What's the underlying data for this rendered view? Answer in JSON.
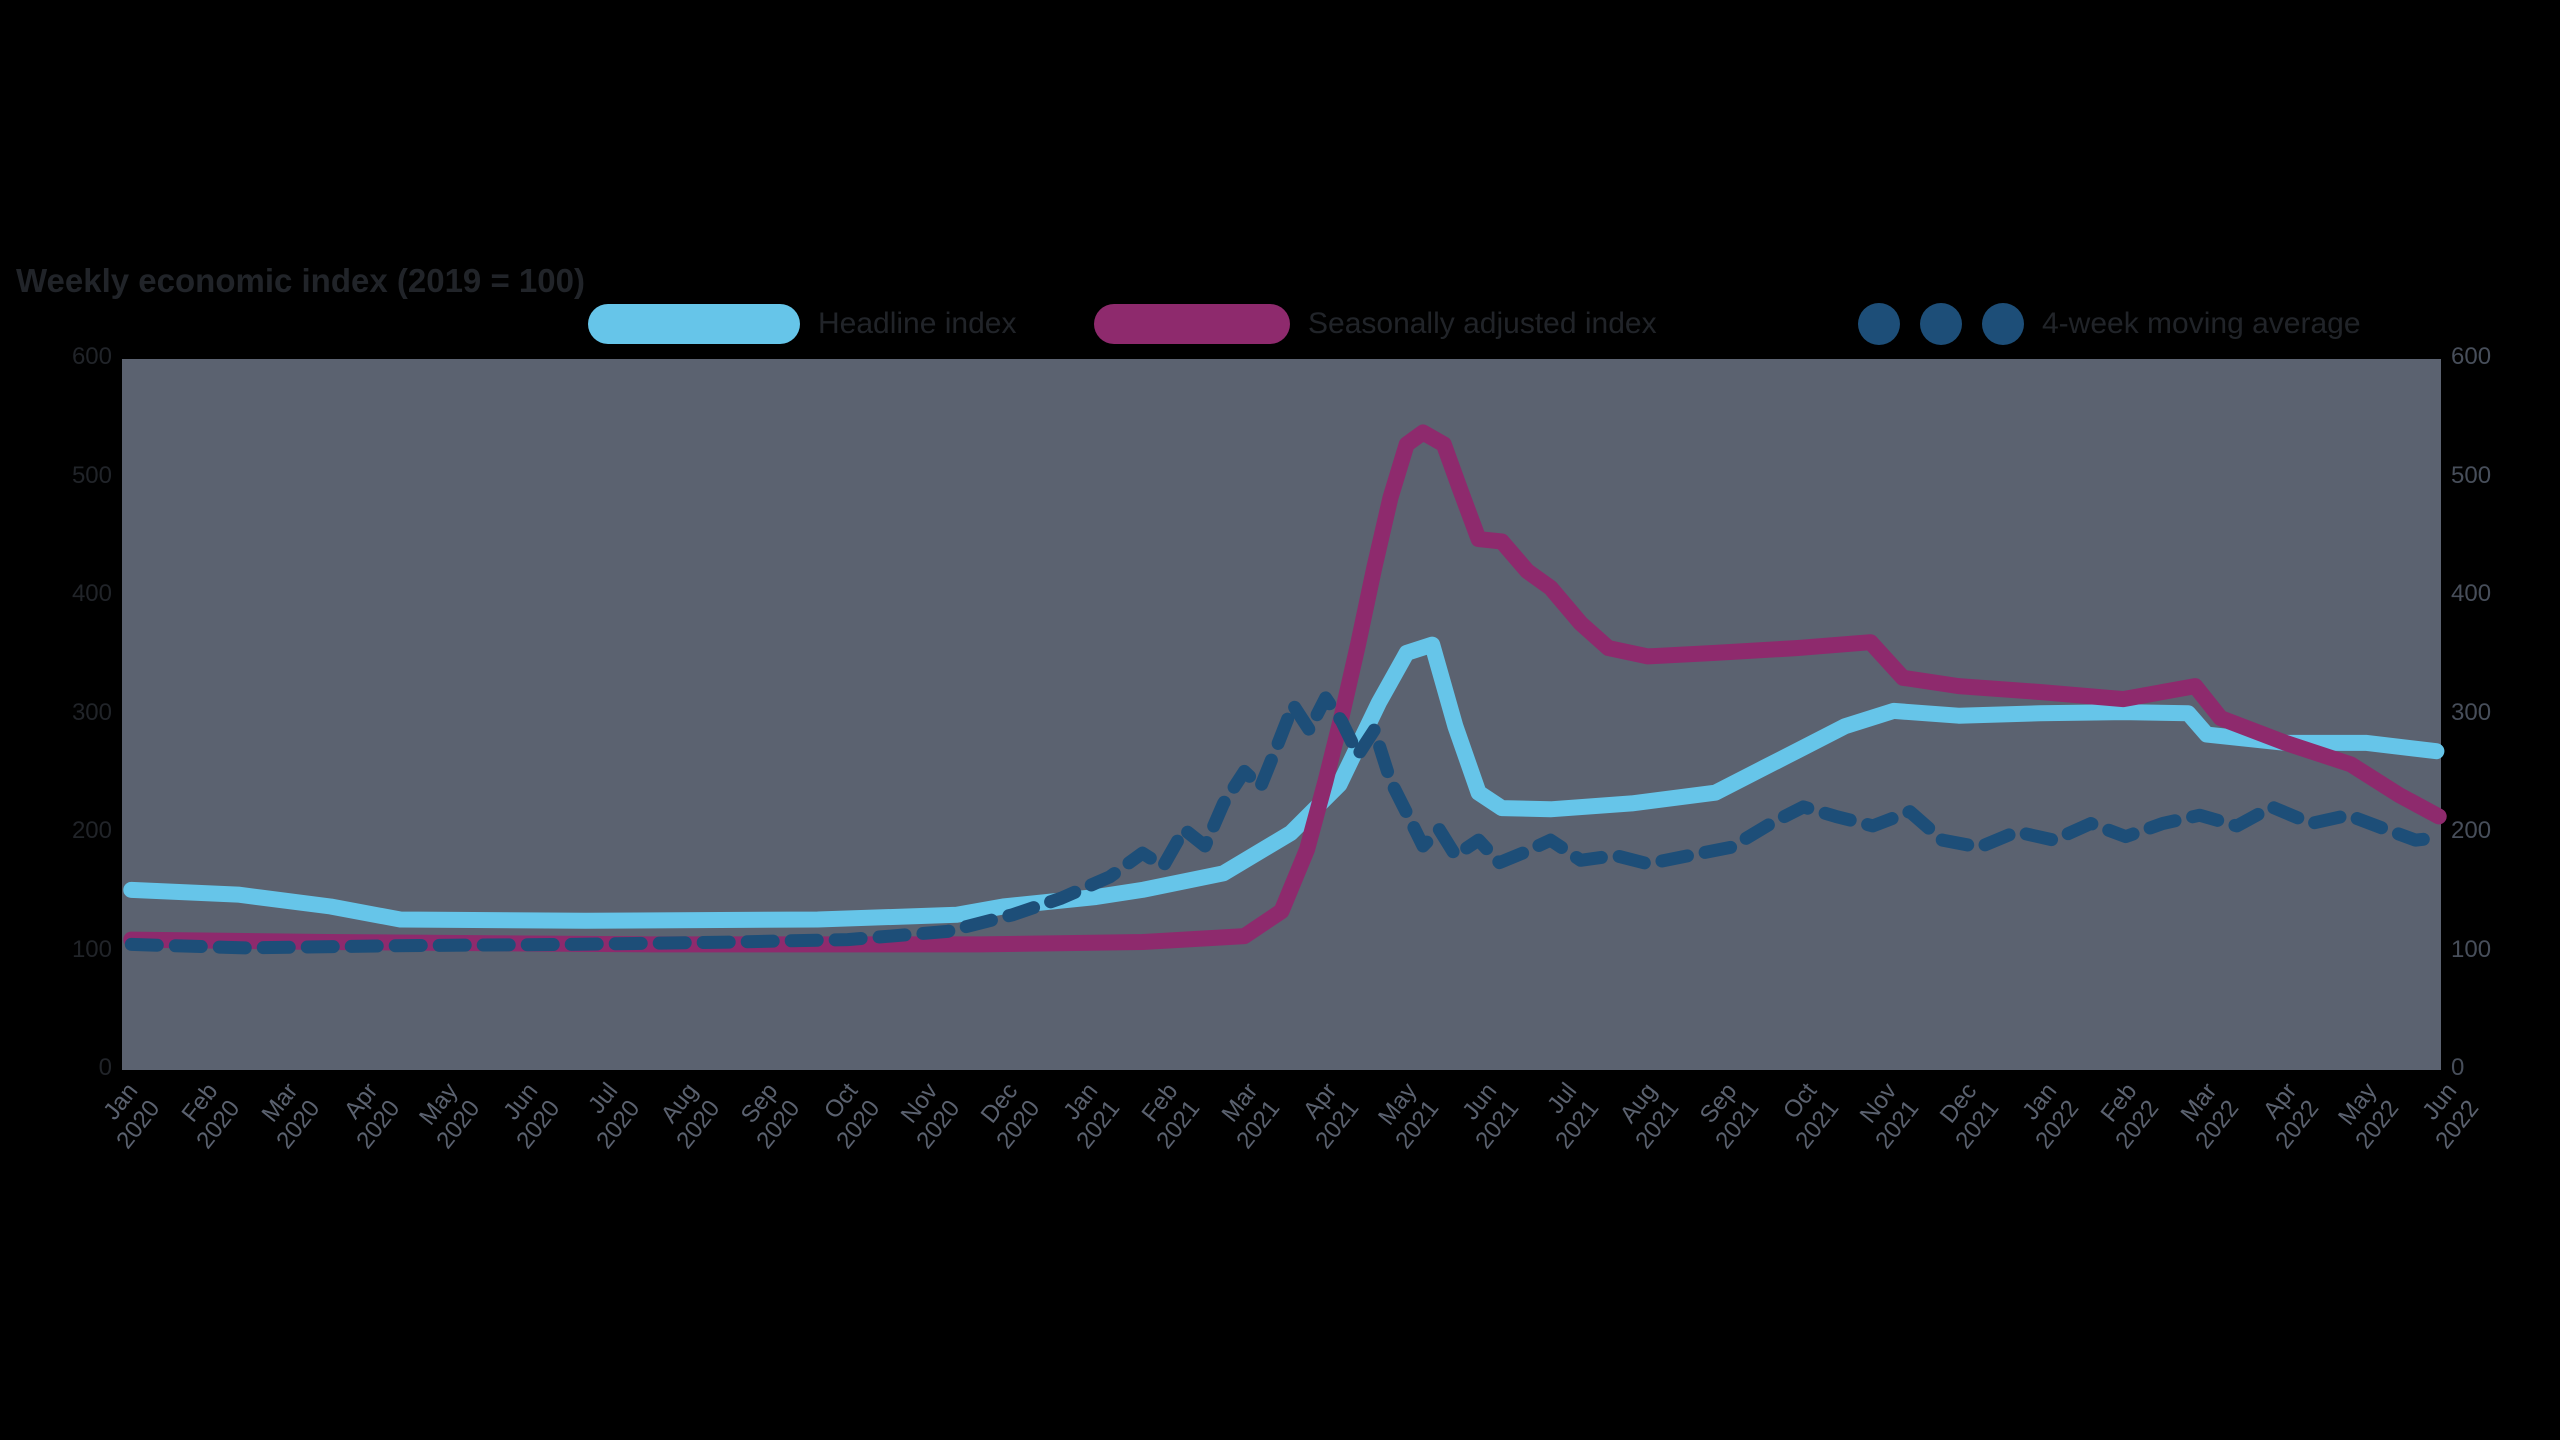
{
  "page": {
    "background_color": "#000000",
    "panel_color": "#5b6270",
    "text_color": "#212429"
  },
  "chart_data": {
    "type": "line",
    "title": "Weekly economic index (2019 = 100)",
    "xlabel": "",
    "ylabel": "",
    "ylim": [
      0,
      600
    ],
    "grid": false,
    "legend_position": "top",
    "y_ticks": [
      0,
      100,
      200,
      300,
      400,
      500,
      600
    ],
    "x_ticks": [
      "Jan\n2020",
      "Feb\n2020",
      "Mar\n2020",
      "Apr\n2020",
      "May\n2020",
      "Jun\n2020",
      "Jul\n2020",
      "Aug\n2020",
      "Sep\n2020",
      "Oct\n2020",
      "Nov\n2020",
      "Dec\n2020",
      "Jan\n2021",
      "Feb\n2021",
      "Mar\n2021",
      "Apr\n2021",
      "May\n2021",
      "Jun\n2021",
      "Jul\n2021",
      "Aug\n2021",
      "Sep\n2021",
      "Oct\n2021",
      "Nov\n2021",
      "Dec\n2021",
      "Jan\n2022",
      "Feb\n2022",
      "Mar\n2022",
      "Apr\n2022",
      "May\n2022",
      "Jun\n2022"
    ],
    "series": [
      {
        "name": "Headline index",
        "color": "#66c5e9",
        "line_style": "solid",
        "stroke_width": 16,
        "dash": null,
        "points": [
          [
            0.4,
            152
          ],
          [
            5,
            148
          ],
          [
            9,
            138
          ],
          [
            12,
            127
          ],
          [
            20,
            126
          ],
          [
            30,
            127
          ],
          [
            36,
            131
          ],
          [
            38,
            138
          ],
          [
            42,
            146
          ],
          [
            44,
            152
          ],
          [
            47.5,
            166
          ],
          [
            50.4,
            200
          ],
          [
            52.5,
            241
          ],
          [
            54.2,
            310
          ],
          [
            55.4,
            352
          ],
          [
            56.5,
            359
          ],
          [
            57.5,
            290
          ],
          [
            58.5,
            234
          ],
          [
            59.5,
            221
          ],
          [
            61.6,
            220
          ],
          [
            65.1,
            225
          ],
          [
            68.7,
            234
          ],
          [
            70.8,
            255
          ],
          [
            72.2,
            269
          ],
          [
            74.3,
            290
          ],
          [
            76.4,
            303
          ],
          [
            79.2,
            299
          ],
          [
            82.7,
            301
          ],
          [
            86.3,
            302
          ],
          [
            89.1,
            301
          ],
          [
            89.9,
            283
          ],
          [
            93.3,
            276
          ],
          [
            96.8,
            276
          ],
          [
            99.8,
            269
          ]
        ]
      },
      {
        "name": "Seasonally adjusted index",
        "color": "#8e2a6d",
        "line_style": "solid",
        "stroke_width": 16,
        "dash": null,
        "points": [
          [
            0.4,
            110
          ],
          [
            8.8,
            108
          ],
          [
            22.9,
            106
          ],
          [
            37,
            106
          ],
          [
            44,
            108
          ],
          [
            48.4,
            113
          ],
          [
            50,
            134
          ],
          [
            51.1,
            186
          ],
          [
            51.9,
            244
          ],
          [
            52.6,
            299
          ],
          [
            53.3,
            359
          ],
          [
            54,
            424
          ],
          [
            54.7,
            483
          ],
          [
            55.4,
            528
          ],
          [
            56.1,
            538
          ],
          [
            57,
            528
          ],
          [
            57.7,
            490
          ],
          [
            58.5,
            448
          ],
          [
            59.5,
            446
          ],
          [
            60.6,
            421
          ],
          [
            61.6,
            407
          ],
          [
            62.9,
            377
          ],
          [
            64.1,
            356
          ],
          [
            65.8,
            349
          ],
          [
            68.7,
            352
          ],
          [
            72.2,
            356
          ],
          [
            75.4,
            361
          ],
          [
            76.8,
            331
          ],
          [
            79.2,
            324
          ],
          [
            82.7,
            319
          ],
          [
            86.3,
            313
          ],
          [
            89.4,
            324
          ],
          [
            90.5,
            297
          ],
          [
            93.3,
            276
          ],
          [
            96.1,
            258
          ],
          [
            98.2,
            232
          ],
          [
            99.9,
            214
          ]
        ]
      },
      {
        "name": "4-week moving average",
        "color": "#1d4e78",
        "line_style": "dotted",
        "stroke_width": 13,
        "dash": "26 18",
        "points": [
          [
            0.4,
            106
          ],
          [
            5.3,
            103
          ],
          [
            12.3,
            105
          ],
          [
            19.4,
            106
          ],
          [
            26.4,
            108
          ],
          [
            31.3,
            110
          ],
          [
            35.6,
            117
          ],
          [
            38.4,
            131
          ],
          [
            40.5,
            145
          ],
          [
            42.6,
            163
          ],
          [
            44,
            183
          ],
          [
            44.9,
            172
          ],
          [
            45.8,
            203
          ],
          [
            46.7,
            189
          ],
          [
            47.5,
            225
          ],
          [
            48.4,
            252
          ],
          [
            49.1,
            239
          ],
          [
            49.8,
            273
          ],
          [
            50.5,
            308
          ],
          [
            51.2,
            287
          ],
          [
            51.9,
            314
          ],
          [
            52.6,
            294
          ],
          [
            53.3,
            266
          ],
          [
            54,
            287
          ],
          [
            54.7,
            244
          ],
          [
            55.4,
            217
          ],
          [
            56.1,
            189
          ],
          [
            56.8,
            203
          ],
          [
            57.5,
            181
          ],
          [
            58.5,
            194
          ],
          [
            59.4,
            175
          ],
          [
            60.4,
            183
          ],
          [
            61.6,
            194
          ],
          [
            62.9,
            177
          ],
          [
            64.4,
            181
          ],
          [
            65.8,
            174
          ],
          [
            67.6,
            181
          ],
          [
            69.4,
            188
          ],
          [
            71.1,
            208
          ],
          [
            72.5,
            222
          ],
          [
            73.9,
            214
          ],
          [
            75.5,
            206
          ],
          [
            77.1,
            218
          ],
          [
            78.5,
            194
          ],
          [
            80.1,
            188
          ],
          [
            81.7,
            201
          ],
          [
            83.3,
            194
          ],
          [
            84.9,
            208
          ],
          [
            86.4,
            197
          ],
          [
            88,
            208
          ],
          [
            89.6,
            215
          ],
          [
            91.2,
            206
          ],
          [
            92.7,
            222
          ],
          [
            94.4,
            208
          ],
          [
            96,
            215
          ],
          [
            97.5,
            204
          ],
          [
            98.9,
            194
          ],
          [
            99.9,
            196
          ]
        ]
      }
    ]
  }
}
